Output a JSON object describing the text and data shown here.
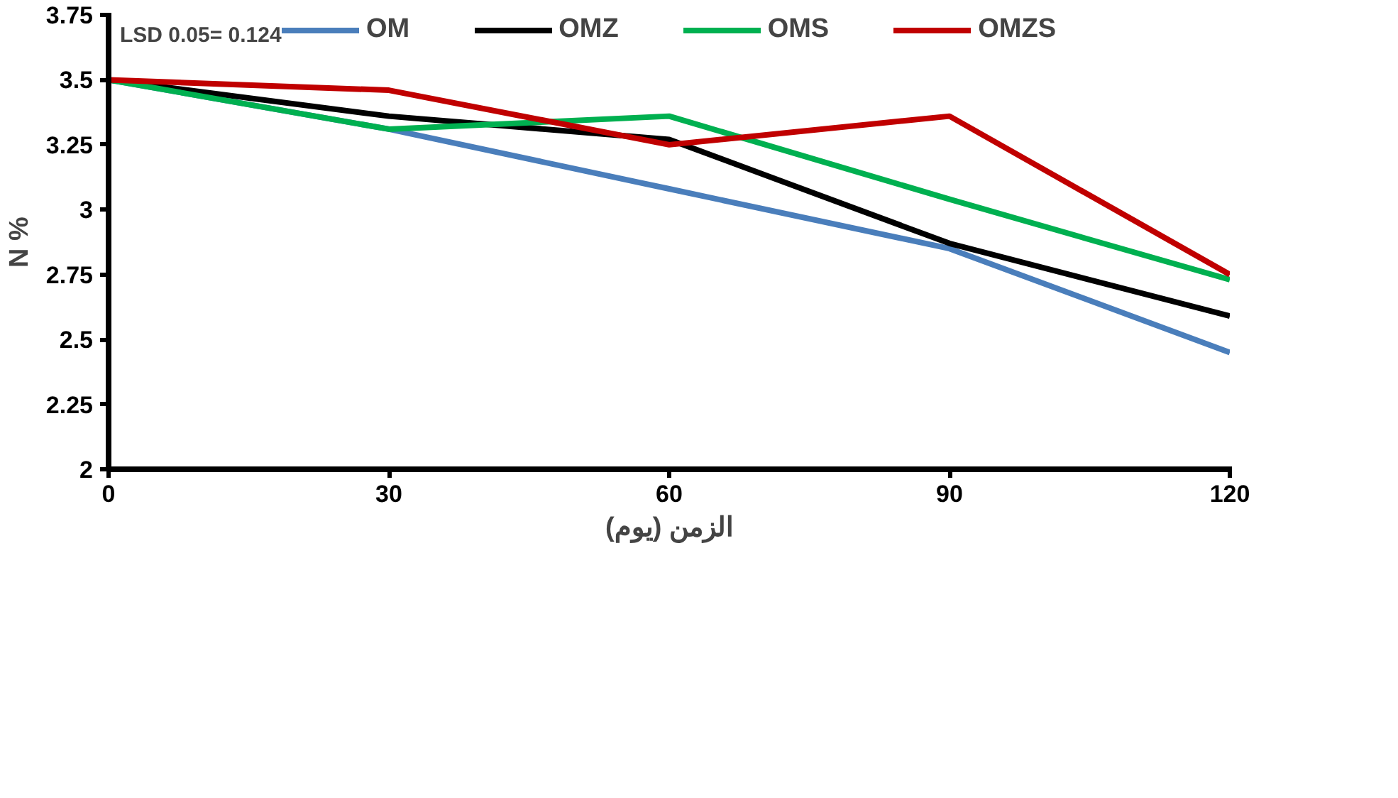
{
  "chart_data": {
    "type": "line",
    "xlabel": "الزمن (يوم)",
    "ylabel": "N %",
    "x": [
      0,
      30,
      60,
      90,
      120
    ],
    "series": [
      {
        "name": "OM",
        "color": "#4a7ebb",
        "values": [
          3.5,
          3.31,
          3.08,
          2.85,
          2.45
        ]
      },
      {
        "name": "OMZ",
        "color": "#000000",
        "values": [
          3.5,
          3.36,
          3.27,
          2.87,
          2.59
        ]
      },
      {
        "name": "OMS",
        "color": "#00b050",
        "values": [
          3.5,
          3.31,
          3.36,
          3.04,
          2.73
        ]
      },
      {
        "name": "OMZS",
        "color": "#c00000",
        "values": [
          3.5,
          3.46,
          3.25,
          3.36,
          2.75
        ]
      }
    ],
    "xlim": [
      0,
      120
    ],
    "xticks": [
      0,
      30,
      60,
      90,
      120
    ],
    "ylim": [
      2,
      3.75
    ],
    "yticks": [
      2,
      {
        "value": 2.25,
        "label": "2.25"
      },
      {
        "value": 2.5,
        "label": "2.5"
      },
      {
        "value": 2.75,
        "label": "2.75"
      },
      3,
      {
        "value": 3.25,
        "label": "3.25"
      },
      {
        "value": 3.5,
        "label": "3.5"
      },
      {
        "value": 3.75,
        "label": "3.75"
      }
    ],
    "annotations": [
      "LSD 0.05= 0.124"
    ],
    "grid": false,
    "legend": "top",
    "marker": "none",
    "line_style": "solid"
  }
}
